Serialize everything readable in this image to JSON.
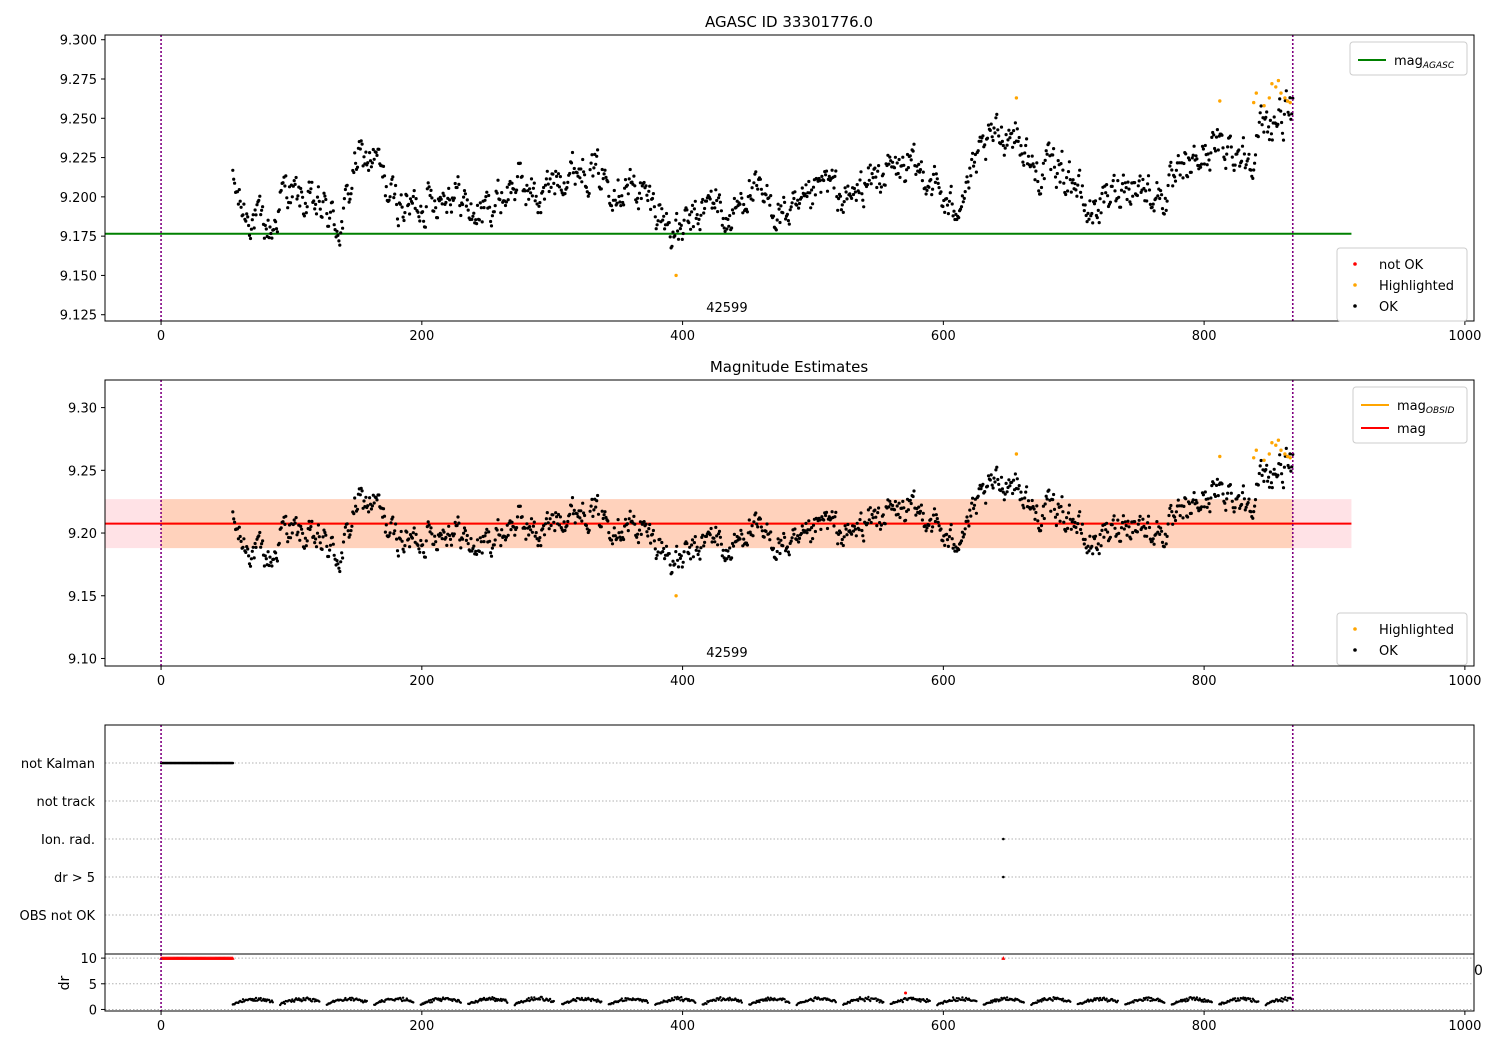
{
  "colors": {
    "ok": "#000000",
    "highlighted": "#ffa500",
    "not_ok": "#ff0000",
    "mag_agasc": "#008000",
    "mag_obsid": "#ffa500",
    "mag": "#ff0000",
    "band_obsid": "#ffd2bc",
    "band_mag": "#ffe2e6",
    "obs_boundary": "#800080",
    "grid": "#b0b0b0"
  },
  "chart_data": [
    {
      "type": "scatter",
      "title": "AGASC ID 33301776.0",
      "xlim": [
        -43,
        1007
      ],
      "ylim": [
        9.121,
        9.303
      ],
      "xticks": [
        "0",
        "200",
        "400",
        "600",
        "800",
        "1000"
      ],
      "yticks": [
        "9.125",
        "9.150",
        "9.175",
        "9.200",
        "9.225",
        "9.250",
        "9.275",
        "9.300"
      ],
      "obs_boundaries": [
        0,
        868
      ],
      "obs_label": {
        "text": "42599",
        "x": 434
      },
      "hlines": [
        {
          "name": "mag_AGASC",
          "value": 9.1765,
          "x_range": [
            -43,
            913
          ]
        }
      ],
      "legend_lines": [
        {
          "base": "mag",
          "sub": "AGASC",
          "color_key": "mag_agasc"
        }
      ],
      "legend_points": [
        {
          "label": "not OK",
          "color_key": "not_ok"
        },
        {
          "label": "Highlighted",
          "color_key": "highlighted"
        },
        {
          "label": "OK",
          "color_key": "ok"
        }
      ],
      "highlighted_points": [
        [
          395,
          9.15
        ],
        [
          656,
          9.263
        ],
        [
          812,
          9.261
        ],
        [
          838,
          9.26
        ],
        [
          840,
          9.266
        ],
        [
          846,
          9.258
        ],
        [
          850,
          9.263
        ],
        [
          852,
          9.272
        ],
        [
          855,
          9.27
        ],
        [
          857,
          9.274
        ],
        [
          859,
          9.266
        ],
        [
          862,
          9.263
        ],
        [
          864,
          9.261
        ],
        [
          866,
          9.26
        ]
      ],
      "not_ok_points": [],
      "series": [
        {
          "name": "OK",
          "x_range": [
            55,
            868
          ],
          "n_points": 1140,
          "trend": [
            [
              55,
              9.208
            ],
            [
              62,
              9.192
            ],
            [
              70,
              9.187
            ],
            [
              85,
              9.178
            ],
            [
              95,
              9.206
            ],
            [
              110,
              9.196
            ],
            [
              125,
              9.192
            ],
            [
              138,
              9.18
            ],
            [
              150,
              9.224
            ],
            [
              165,
              9.224
            ],
            [
              175,
              9.2
            ],
            [
              190,
              9.193
            ],
            [
              210,
              9.2
            ],
            [
              225,
              9.205
            ],
            [
              240,
              9.188
            ],
            [
              255,
              9.196
            ],
            [
              275,
              9.21
            ],
            [
              290,
              9.198
            ],
            [
              305,
              9.214
            ],
            [
              325,
              9.22
            ],
            [
              345,
              9.21
            ],
            [
              365,
              9.205
            ],
            [
              380,
              9.193
            ],
            [
              395,
              9.176
            ],
            [
              410,
              9.185
            ],
            [
              425,
              9.2
            ],
            [
              435,
              9.182
            ],
            [
              450,
              9.205
            ],
            [
              470,
              9.192
            ],
            [
              490,
              9.188
            ],
            [
              510,
              9.21
            ],
            [
              525,
              9.196
            ],
            [
              540,
              9.208
            ],
            [
              555,
              9.216
            ],
            [
              575,
              9.218
            ],
            [
              590,
              9.213
            ],
            [
              605,
              9.19
            ],
            [
              620,
              9.212
            ],
            [
              640,
              9.24
            ],
            [
              655,
              9.242
            ],
            [
              670,
              9.215
            ],
            [
              685,
              9.22
            ],
            [
              700,
              9.212
            ],
            [
              710,
              9.19
            ],
            [
              725,
              9.198
            ],
            [
              740,
              9.21
            ],
            [
              755,
              9.205
            ],
            [
              770,
              9.2
            ],
            [
              790,
              9.22
            ],
            [
              805,
              9.23
            ],
            [
              820,
              9.232
            ],
            [
              835,
              9.225
            ],
            [
              845,
              9.245
            ],
            [
              868,
              9.255
            ]
          ],
          "spread": 0.01
        }
      ]
    },
    {
      "type": "scatter",
      "title": "Magnitude Estimates",
      "xlim": [
        -43,
        1007
      ],
      "ylim": [
        9.094,
        9.322
      ],
      "xticks": [
        "0",
        "200",
        "400",
        "600",
        "800",
        "1000"
      ],
      "yticks": [
        "9.10",
        "9.15",
        "9.20",
        "9.25",
        "9.30"
      ],
      "obs_boundaries": [
        0,
        868
      ],
      "obs_label": {
        "text": "42599",
        "x": 434
      },
      "hlines": [
        {
          "name": "mag_OBSID",
          "value": 9.2075,
          "x_range": [
            0,
            868
          ]
        },
        {
          "name": "mag",
          "value": 9.2075,
          "x_range": [
            -43,
            913
          ]
        }
      ],
      "bands": [
        {
          "name": "mag",
          "ymin": 9.188,
          "ymax": 9.227,
          "x_range": [
            -43,
            913
          ]
        },
        {
          "name": "mag_OBSID",
          "ymin": 9.188,
          "ymax": 9.227,
          "x_range": [
            0,
            868
          ]
        }
      ],
      "legend_lines": [
        {
          "base": "mag",
          "sub": "OBSID",
          "color_key": "mag_obsid"
        },
        {
          "base": "mag",
          "sub": "",
          "color_key": "mag"
        }
      ],
      "legend_points": [
        {
          "label": "Highlighted",
          "color_key": "highlighted"
        },
        {
          "label": "OK",
          "color_key": "ok"
        }
      ],
      "highlighted_points": [
        [
          395,
          9.15
        ],
        [
          656,
          9.263
        ],
        [
          812,
          9.261
        ],
        [
          838,
          9.26
        ],
        [
          840,
          9.266
        ],
        [
          846,
          9.258
        ],
        [
          850,
          9.263
        ],
        [
          852,
          9.272
        ],
        [
          855,
          9.27
        ],
        [
          857,
          9.274
        ],
        [
          859,
          9.266
        ],
        [
          862,
          9.263
        ],
        [
          864,
          9.261
        ],
        [
          866,
          9.26
        ]
      ],
      "series": [
        {
          "name": "OK",
          "x_range": [
            55,
            868
          ],
          "n_points": 1140,
          "same_as_panel": 0
        }
      ]
    },
    {
      "type": "scatter",
      "title": "",
      "xlim": [
        -43,
        1007
      ],
      "categories": [
        "not Kalman",
        "not track",
        "Ion. rad.",
        "dr > 5",
        "OBS not OK"
      ],
      "obs_boundaries": [
        0,
        868
      ],
      "flag_points": [
        {
          "category": "not Kalman",
          "x_range": [
            0,
            55
          ]
        },
        {
          "category": "Ion. rad.",
          "x": [
            646
          ]
        },
        {
          "category": "dr > 5",
          "x": [
            646
          ]
        }
      ]
    },
    {
      "type": "scatter",
      "title": "",
      "ylabel": "dr",
      "xlim": [
        -43,
        1007
      ],
      "ylim": [
        -0.3,
        10.8
      ],
      "xticks": [
        "0",
        "200",
        "400",
        "600",
        "800",
        "1000"
      ],
      "yticks": [
        "0",
        "5",
        "10"
      ],
      "obs_boundaries": [
        0,
        868
      ],
      "clipped_points": {
        "x_range": [
          0,
          55
        ],
        "value": 10,
        "extra_x": [
          646
        ]
      },
      "outlier_points": [
        [
          571,
          3.2
        ]
      ],
      "series": [
        {
          "name": "dr",
          "x_range": [
            55,
            868
          ],
          "n_points": 1140,
          "typical_range": [
            0.5,
            2.8
          ]
        }
      ],
      "stray_tick": "0"
    }
  ]
}
